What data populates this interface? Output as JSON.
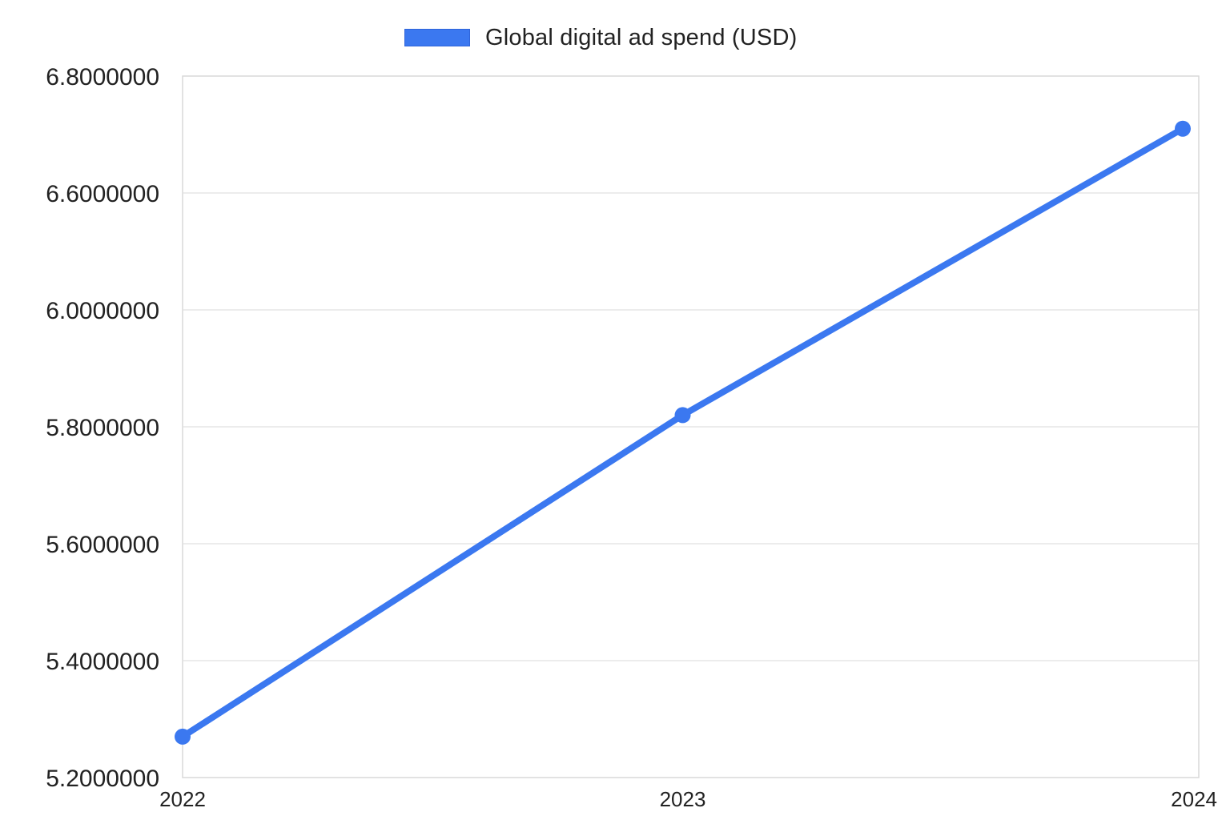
{
  "chart_data": {
    "type": "line",
    "categories": [
      "2022",
      "2023",
      "2024"
    ],
    "series": [
      {
        "name": "Global digital ad spend (USD)",
        "values": [
          5.27,
          5.82,
          6.71
        ],
        "color": "#3b78f0"
      }
    ],
    "y_ticks": [
      {
        "value": 5.2,
        "label": "5.2000000"
      },
      {
        "value": 5.4,
        "label": "5.4000000"
      },
      {
        "value": 5.6,
        "label": "5.6000000"
      },
      {
        "value": 5.8,
        "label": "5.8000000"
      },
      {
        "value": 6.0,
        "label": "6.0000000"
      },
      {
        "value": 6.6,
        "label": "6.6000000"
      },
      {
        "value": 6.8,
        "label": "6.8000000"
      }
    ],
    "title": "",
    "xlabel": "",
    "ylabel": "",
    "grid": true,
    "legend_position": "top-center"
  }
}
